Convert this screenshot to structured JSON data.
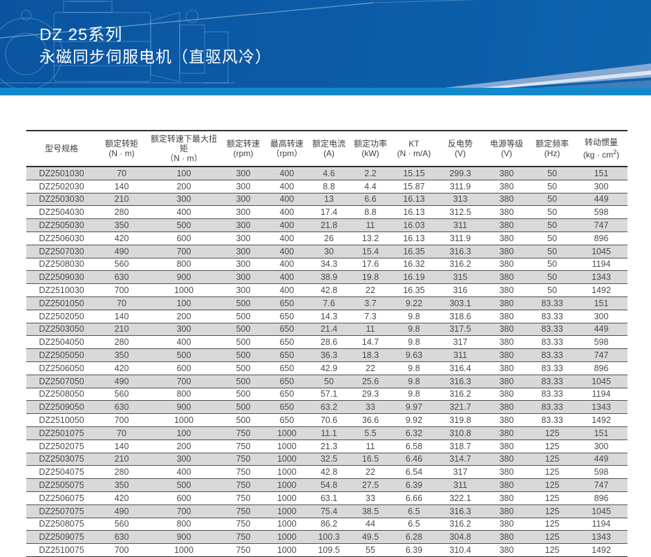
{
  "banner": {
    "title": "DZ 25系列",
    "subtitle": "永磁同步伺服电机（直驱风冷）",
    "bg_color": "#0c5ba7",
    "strip_color": "#1389cd",
    "motor_drawing_icon": "motor-wireframe-icon"
  },
  "table": {
    "columns": [
      {
        "label": "型号规格",
        "unit": ""
      },
      {
        "label": "额定转矩",
        "unit": "(N · m)"
      },
      {
        "label": "额定转速下最大扭矩",
        "unit": "（N · m）"
      },
      {
        "label": "额定转速",
        "unit": "(rpm)"
      },
      {
        "label": "最高转速",
        "unit": "（rpm）"
      },
      {
        "label": "额定电流",
        "unit": "(A)"
      },
      {
        "label": "额定功率",
        "unit": "(kW)"
      },
      {
        "label": "KT",
        "unit": "(N · m/A)"
      },
      {
        "label": "反电势",
        "unit": "(V)"
      },
      {
        "label": "电源等级",
        "unit": "(V)"
      },
      {
        "label": "额定频率",
        "unit": "(Hz)"
      },
      {
        "label": "转动惯量",
        "unit": "(kg · cm²)"
      }
    ],
    "rows": [
      [
        "DZ2501030",
        "70",
        "100",
        "300",
        "400",
        "4.6",
        "2.2",
        "15.15",
        "299.3",
        "380",
        "50",
        "151"
      ],
      [
        "DZ2502030",
        "140",
        "200",
        "300",
        "400",
        "8.8",
        "4.4",
        "15.87",
        "311.9",
        "380",
        "50",
        "300"
      ],
      [
        "DZ2503030",
        "210",
        "300",
        "300",
        "400",
        "13",
        "6.6",
        "16.13",
        "313",
        "380",
        "50",
        "449"
      ],
      [
        "DZ2504030",
        "280",
        "400",
        "300",
        "400",
        "17.4",
        "8.8",
        "16.13",
        "312.5",
        "380",
        "50",
        "598"
      ],
      [
        "DZ2505030",
        "350",
        "500",
        "300",
        "400",
        "21.8",
        "11",
        "16.03",
        "311",
        "380",
        "50",
        "747"
      ],
      [
        "DZ2506030",
        "420",
        "600",
        "300",
        "400",
        "26",
        "13.2",
        "16.13",
        "311.9",
        "380",
        "50",
        "896"
      ],
      [
        "DZ2507030",
        "490",
        "700",
        "300",
        "400",
        "30",
        "15.4",
        "16.35",
        "316.3",
        "380",
        "50",
        "1045"
      ],
      [
        "DZ2508030",
        "560",
        "800",
        "300",
        "400",
        "34.3",
        "17.6",
        "16.32",
        "316.2",
        "380",
        "50",
        "1194"
      ],
      [
        "DZ2509030",
        "630",
        "900",
        "300",
        "400",
        "38.9",
        "19.8",
        "16.19",
        "315",
        "380",
        "50",
        "1343"
      ],
      [
        "DZ2510030",
        "700",
        "1000",
        "300",
        "400",
        "42.8",
        "22",
        "16.35",
        "316",
        "380",
        "50",
        "1492"
      ],
      [
        "DZ2501050",
        "70",
        "100",
        "500",
        "650",
        "7.6",
        "3.7",
        "9.22",
        "303.1",
        "380",
        "83.33",
        "151"
      ],
      [
        "DZ2502050",
        "140",
        "200",
        "500",
        "650",
        "14.3",
        "7.3",
        "9.8",
        "318.6",
        "380",
        "83.33",
        "300"
      ],
      [
        "DZ2503050",
        "210",
        "300",
        "500",
        "650",
        "21.4",
        "11",
        "9.8",
        "317.5",
        "380",
        "83.33",
        "449"
      ],
      [
        "DZ2504050",
        "280",
        "400",
        "500",
        "650",
        "28.6",
        "14.7",
        "9.8",
        "317",
        "380",
        "83.33",
        "598"
      ],
      [
        "DZ2505050",
        "350",
        "500",
        "500",
        "650",
        "36.3",
        "18.3",
        "9.63",
        "311",
        "380",
        "83.33",
        "747"
      ],
      [
        "DZ2506050",
        "420",
        "600",
        "500",
        "650",
        "42.9",
        "22",
        "9.8",
        "316.4",
        "380",
        "83.33",
        "896"
      ],
      [
        "DZ2507050",
        "490",
        "700",
        "500",
        "650",
        "50",
        "25.6",
        "9.8",
        "316.3",
        "380",
        "83.33",
        "1045"
      ],
      [
        "DZ2508050",
        "560",
        "800",
        "500",
        "650",
        "57.1",
        "29.3",
        "9.8",
        "316.2",
        "380",
        "83.33",
        "1194"
      ],
      [
        "DZ2509050",
        "630",
        "900",
        "500",
        "650",
        "63.2",
        "33",
        "9.97",
        "321.7",
        "380",
        "83.33",
        "1343"
      ],
      [
        "DZ2510050",
        "700",
        "1000",
        "500",
        "650",
        "70.6",
        "36.6",
        "9.92",
        "319.8",
        "380",
        "83.33",
        "1492"
      ],
      [
        "DZ2501075",
        "70",
        "100",
        "750",
        "1000",
        "11.1",
        "5.5",
        "6.32",
        "310.8",
        "380",
        "125",
        "151"
      ],
      [
        "DZ2502075",
        "140",
        "200",
        "750",
        "1000",
        "21.3",
        "11",
        "6.58",
        "318.7",
        "380",
        "125",
        "300"
      ],
      [
        "DZ2503075",
        "210",
        "300",
        "750",
        "1000",
        "32.5",
        "16.5",
        "6.46",
        "314.7",
        "380",
        "125",
        "449"
      ],
      [
        "DZ2504075",
        "280",
        "400",
        "750",
        "1000",
        "42.8",
        "22",
        "6.54",
        "317",
        "380",
        "125",
        "598"
      ],
      [
        "DZ2505075",
        "350",
        "500",
        "750",
        "1000",
        "54.8",
        "27.5",
        "6.39",
        "311",
        "380",
        "125",
        "747"
      ],
      [
        "DZ2506075",
        "420",
        "600",
        "750",
        "1000",
        "63.1",
        "33",
        "6.66",
        "322.1",
        "380",
        "125",
        "896"
      ],
      [
        "DZ2507075",
        "490",
        "700",
        "750",
        "1000",
        "75.4",
        "38.5",
        "6.5",
        "316.3",
        "380",
        "125",
        "1045"
      ],
      [
        "DZ2508075",
        "560",
        "800",
        "750",
        "1000",
        "86.2",
        "44",
        "6.5",
        "316.2",
        "380",
        "125",
        "1194"
      ],
      [
        "DZ2509075",
        "630",
        "900",
        "750",
        "1000",
        "100.3",
        "49.5",
        "6.28",
        "304.8",
        "380",
        "125",
        "1343"
      ],
      [
        "DZ2510075",
        "700",
        "1000",
        "750",
        "1000",
        "109.5",
        "55",
        "6.39",
        "310.4",
        "380",
        "125",
        "1492"
      ]
    ],
    "row_alt_color": "#d9d9d9",
    "border_color": "#2e2e2e"
  }
}
